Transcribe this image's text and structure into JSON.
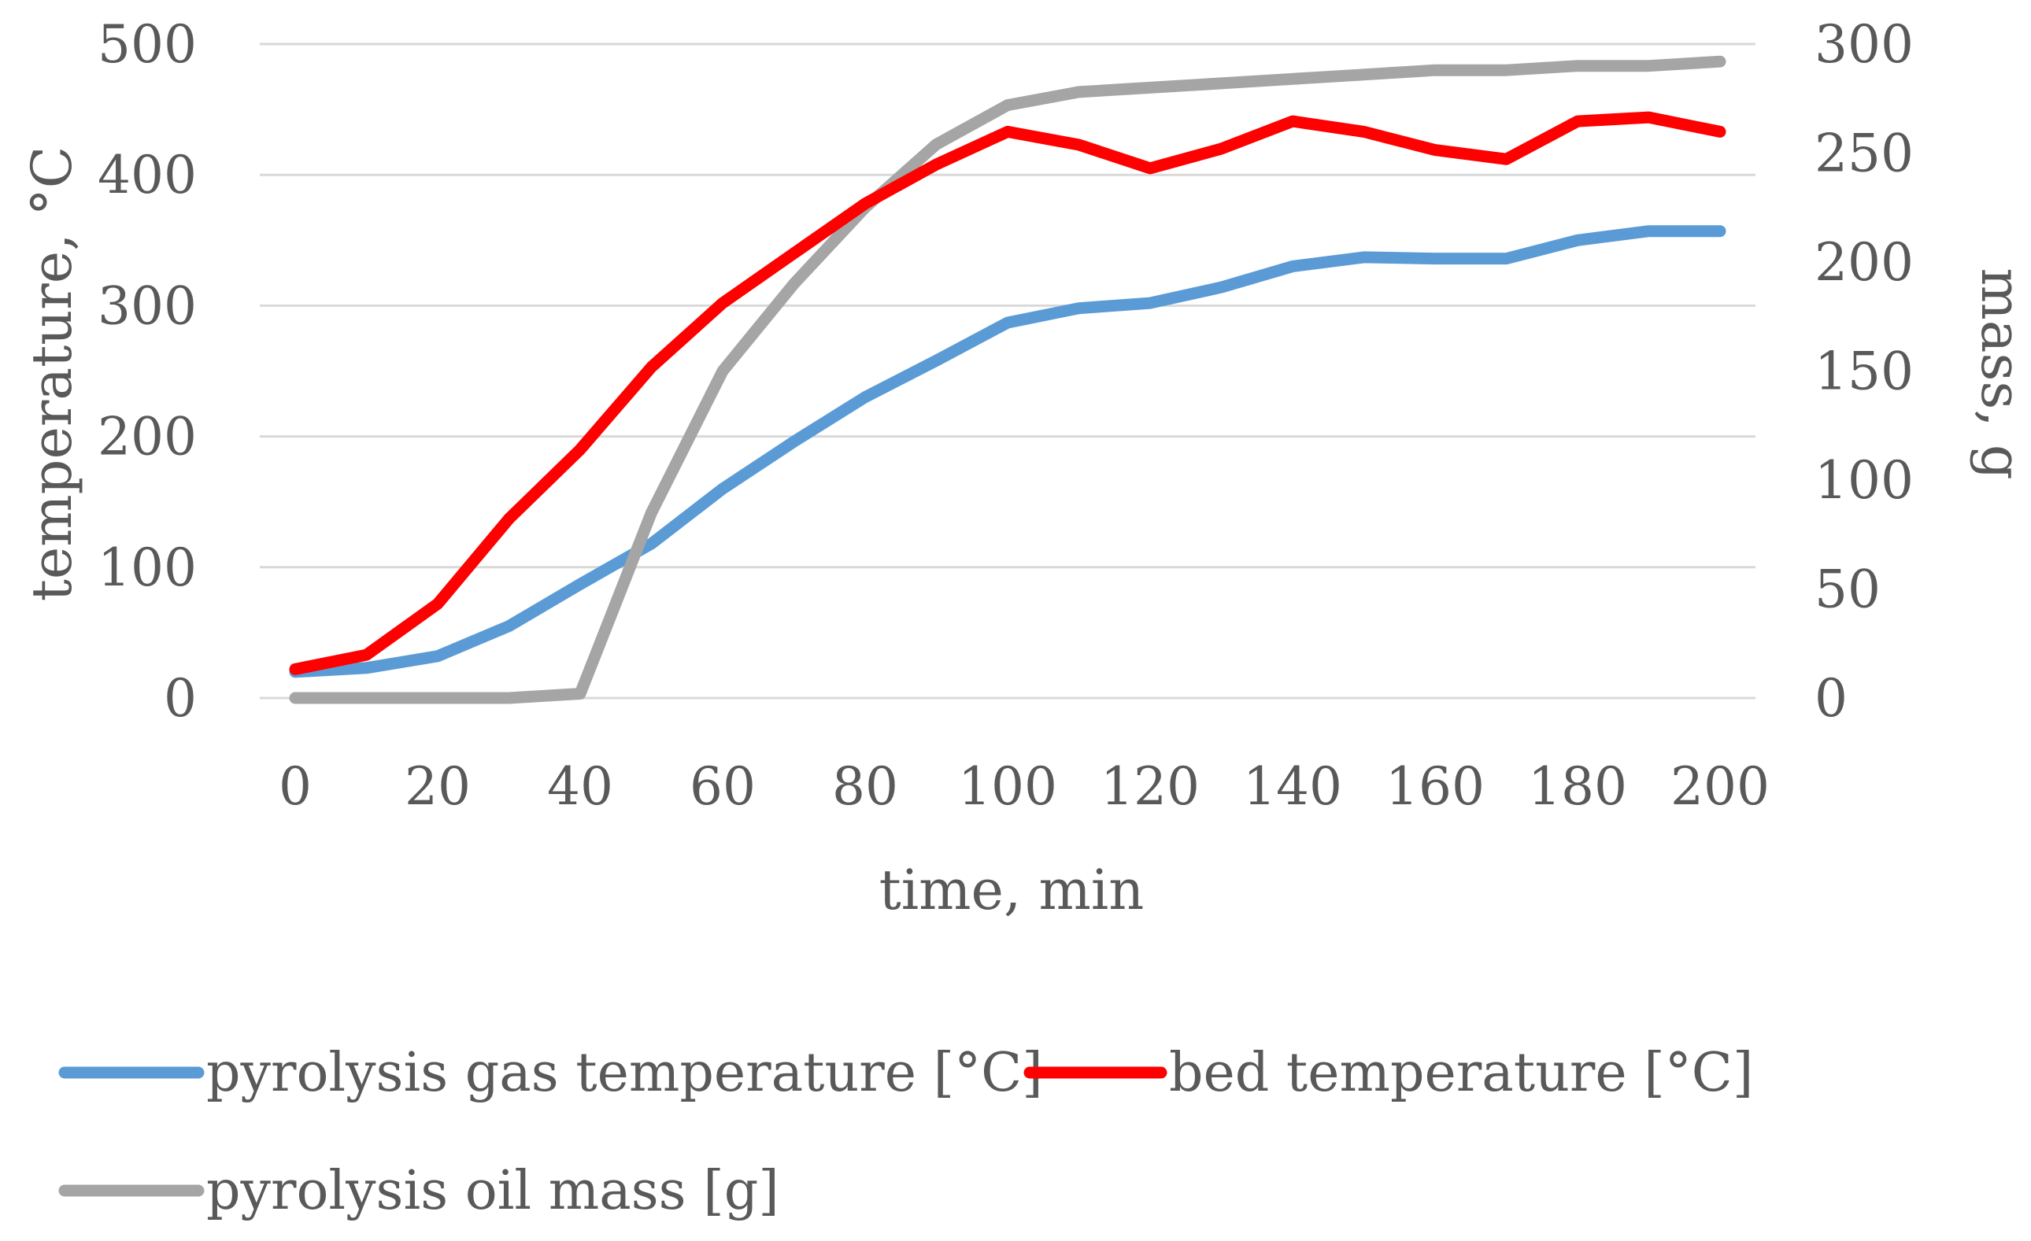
{
  "chart_data": {
    "type": "line",
    "title": "",
    "xlabel": "time, min",
    "ylabel": "temperature, °C",
    "y2label": "mass, g",
    "x": [
      0,
      10,
      20,
      30,
      40,
      50,
      60,
      70,
      80,
      90,
      100,
      110,
      120,
      130,
      140,
      150,
      160,
      170,
      180,
      190,
      200
    ],
    "xticks": [
      0,
      20,
      40,
      60,
      80,
      100,
      120,
      140,
      160,
      180,
      200
    ],
    "ylim": [
      0,
      500
    ],
    "yticks": [
      0,
      100,
      200,
      300,
      400,
      500
    ],
    "y2lim": [
      0,
      300
    ],
    "y2ticks": [
      0,
      50,
      100,
      150,
      200,
      250,
      300
    ],
    "grid": true,
    "legend_position": "bottom",
    "series": [
      {
        "name": "pyrolysis gas temperature [°C]",
        "axis": "left",
        "color": "#5b9bd5",
        "values": [
          20,
          23,
          32,
          55,
          87,
          118,
          160,
          196,
          230,
          258,
          287,
          298,
          302,
          314,
          330,
          337,
          336,
          336,
          350,
          357,
          357
        ]
      },
      {
        "name": "bed temperature [°C]",
        "axis": "left",
        "color": "#ff0000",
        "values": [
          22,
          33,
          72,
          137,
          190,
          253,
          302,
          340,
          378,
          408,
          433,
          423,
          405,
          420,
          441,
          433,
          419,
          412,
          441,
          444,
          433
        ]
      },
      {
        "name": "pyrolysis oil mass [g]",
        "axis": "right",
        "color": "#a5a5a5",
        "values": [
          0,
          0,
          0,
          0,
          2,
          85,
          150,
          190,
          225,
          254,
          272,
          278,
          280,
          282,
          284,
          286,
          288,
          288,
          290,
          290,
          292
        ]
      }
    ]
  }
}
